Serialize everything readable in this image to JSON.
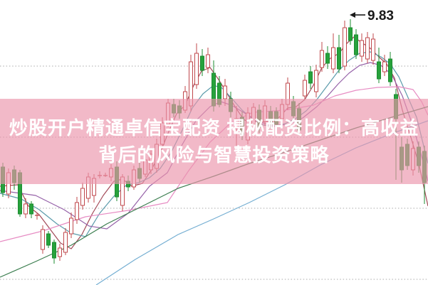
{
  "page": {
    "background": "#ffffff"
  },
  "overlay": {
    "band_color": "rgba(236,148,172,0.66)",
    "text_color": "#ffffff",
    "line1": "炒股开户精通卓信宝配资 揭秘配资比例：高收益",
    "line2": "背后的风险与智慧投资策略"
  },
  "chart_data": {
    "type": "candlestick",
    "title": "",
    "xlabel": "",
    "ylabel": "",
    "legend": "none",
    "grid": "dotted-horizontal",
    "colors": {
      "up_candle": "#c0484c",
      "down_candle_fill": "#27a23c",
      "down_candle_stroke": "#1d8c31",
      "gridline": "#a9a9a9",
      "annotation_text": "#1a1a1a"
    },
    "y_axis": {
      "gridline_prices": [
        9.5,
        9.0,
        8.5,
        8.0
      ],
      "labels_shown": false,
      "price_at_top_edge": 9.965,
      "price_at_bottom_edge": 7.96
    },
    "annotation": {
      "text": "9.83",
      "price": 9.83,
      "candle_index": 61
    },
    "candles": [
      [
        8.79,
        8.82,
        8.58,
        8.61
      ],
      [
        8.6,
        8.78,
        8.57,
        8.75
      ],
      [
        8.77,
        8.8,
        8.63,
        8.68
      ],
      [
        8.75,
        8.77,
        8.44,
        8.46
      ],
      [
        8.46,
        8.57,
        8.43,
        8.53
      ],
      [
        8.53,
        8.55,
        8.43,
        8.46
      ],
      [
        8.45,
        8.47,
        8.42,
        8.45
      ],
      [
        8.21,
        8.38,
        8.18,
        8.35
      ],
      [
        8.32,
        8.34,
        8.22,
        8.24
      ],
      [
        8.26,
        8.28,
        8.11,
        8.15
      ],
      [
        8.16,
        8.25,
        8.13,
        8.22
      ],
      [
        8.19,
        8.36,
        8.17,
        8.33
      ],
      [
        8.32,
        8.47,
        8.29,
        8.43
      ],
      [
        8.42,
        8.58,
        8.39,
        8.54
      ],
      [
        8.52,
        8.68,
        8.49,
        8.64
      ],
      [
        8.57,
        8.75,
        8.54,
        8.72
      ],
      [
        8.59,
        8.74,
        8.54,
        8.71
      ],
      [
        8.73,
        8.76,
        8.71,
        8.73
      ],
      [
        8.73,
        8.75,
        8.72,
        8.73
      ],
      [
        8.72,
        8.81,
        8.69,
        8.78
      ],
      [
        8.79,
        8.83,
        8.55,
        8.58
      ],
      [
        8.52,
        8.74,
        8.48,
        8.72
      ],
      [
        8.69,
        8.73,
        8.62,
        8.65
      ],
      [
        8.65,
        8.8,
        8.63,
        8.77
      ],
      [
        8.78,
        8.82,
        8.68,
        8.71
      ],
      [
        8.74,
        8.88,
        8.72,
        8.84
      ],
      [
        8.77,
        8.92,
        8.74,
        8.88
      ],
      [
        8.78,
        8.99,
        8.75,
        8.95
      ],
      [
        8.95,
        9.14,
        8.92,
        9.1
      ],
      [
        9.09,
        9.27,
        9.07,
        9.24
      ],
      [
        9.23,
        9.27,
        9.14,
        9.17
      ],
      [
        9.22,
        9.26,
        9.13,
        9.17
      ],
      [
        9.19,
        9.36,
        9.17,
        9.32
      ],
      [
        9.22,
        9.58,
        9.18,
        9.53
      ],
      [
        9.37,
        9.66,
        9.34,
        9.59
      ],
      [
        9.57,
        9.62,
        9.43,
        9.47
      ],
      [
        9.49,
        9.63,
        9.45,
        9.58
      ],
      [
        9.45,
        9.54,
        9.18,
        9.22
      ],
      [
        9.38,
        9.43,
        9.21,
        9.23
      ],
      [
        9.27,
        9.41,
        9.22,
        9.36
      ],
      [
        9.27,
        9.32,
        9.14,
        9.18
      ],
      [
        9.07,
        9.22,
        8.94,
        9.13
      ],
      [
        9.14,
        9.18,
        8.98,
        9.02
      ],
      [
        8.98,
        9.21,
        8.95,
        9.17
      ],
      [
        9.09,
        9.24,
        9.06,
        9.21
      ],
      [
        9.19,
        9.23,
        9.03,
        9.07
      ],
      [
        9.11,
        9.26,
        9.08,
        9.22
      ],
      [
        9.18,
        9.22,
        9.06,
        9.09
      ],
      [
        9.18,
        9.21,
        9.06,
        9.09
      ],
      [
        9.13,
        9.27,
        9.09,
        9.23
      ],
      [
        9.23,
        9.42,
        9.19,
        9.38
      ],
      [
        9.25,
        9.29,
        9.12,
        9.15
      ],
      [
        9.2,
        9.24,
        9.02,
        9.05
      ],
      [
        9.29,
        9.44,
        9.26,
        9.4
      ],
      [
        9.46,
        9.5,
        9.34,
        9.38
      ],
      [
        9.32,
        9.51,
        9.28,
        9.47
      ],
      [
        9.49,
        9.67,
        9.46,
        9.61
      ],
      [
        9.59,
        9.64,
        9.48,
        9.52
      ],
      [
        9.48,
        9.73,
        9.45,
        9.63
      ],
      [
        9.63,
        9.72,
        9.45,
        9.48
      ],
      [
        9.5,
        9.82,
        9.47,
        9.77
      ],
      [
        9.77,
        9.83,
        9.65,
        9.68
      ],
      [
        9.72,
        9.76,
        9.55,
        9.58
      ],
      [
        9.57,
        9.73,
        9.53,
        9.68
      ],
      [
        9.55,
        9.74,
        9.52,
        9.7
      ],
      [
        9.54,
        9.73,
        9.51,
        9.69
      ],
      [
        9.53,
        9.63,
        9.38,
        9.41
      ],
      [
        9.46,
        9.58,
        9.43,
        9.53
      ],
      [
        9.55,
        9.6,
        9.36,
        9.39
      ],
      [
        9.3,
        9.34,
        8.7,
        9.13
      ],
      [
        8.93,
        9.0,
        8.68,
        8.77
      ],
      [
        8.95,
        8.99,
        8.77,
        8.8
      ],
      [
        8.77,
        8.97,
        8.73,
        8.92
      ],
      [
        8.93,
        8.97,
        8.75,
        8.8
      ],
      [
        8.9,
        8.94,
        8.53,
        8.68
      ]
    ],
    "ma_lines": [
      {
        "name": "MA5",
        "color": "#a34a58",
        "points": [
          [
            0,
            8.655
          ],
          [
            25,
            8.665
          ],
          [
            40,
            8.515
          ],
          [
            55,
            8.455
          ],
          [
            70,
            8.355
          ],
          [
            85,
            8.255
          ],
          [
            100,
            8.215
          ],
          [
            115,
            8.315
          ],
          [
            130,
            8.465
          ],
          [
            145,
            8.59
          ],
          [
            160,
            8.69
          ],
          [
            172,
            8.705
          ],
          [
            185,
            8.655
          ],
          [
            200,
            8.675
          ],
          [
            212,
            8.765
          ],
          [
            225,
            8.89
          ],
          [
            237,
            9.04
          ],
          [
            248,
            9.165
          ],
          [
            260,
            9.225
          ],
          [
            272,
            9.365
          ],
          [
            283,
            9.465
          ],
          [
            295,
            9.49
          ],
          [
            307,
            9.405
          ],
          [
            318,
            9.315
          ],
          [
            330,
            9.215
          ],
          [
            342,
            9.125
          ],
          [
            355,
            9.09
          ],
          [
            367,
            9.105
          ],
          [
            380,
            9.115
          ],
          [
            392,
            9.14
          ],
          [
            404,
            9.205
          ],
          [
            416,
            9.215
          ],
          [
            428,
            9.265
          ],
          [
            440,
            9.365
          ],
          [
            452,
            9.49
          ],
          [
            464,
            9.555
          ],
          [
            476,
            9.59
          ],
          [
            488,
            9.665
          ],
          [
            497,
            9.705
          ],
          [
            508,
            9.665
          ],
          [
            520,
            9.625
          ],
          [
            532,
            9.565
          ],
          [
            543,
            9.515
          ],
          [
            554,
            9.415
          ],
          [
            565,
            9.19
          ],
          [
            576,
            9.015
          ],
          [
            588,
            8.815
          ],
          [
            601,
            8.515
          ]
        ]
      },
      {
        "name": "MA10",
        "color": "#5b9bab",
        "points": [
          [
            0,
            8.605
          ],
          [
            30,
            8.565
          ],
          [
            55,
            8.49
          ],
          [
            80,
            8.39
          ],
          [
            100,
            8.325
          ],
          [
            120,
            8.3
          ],
          [
            140,
            8.465
          ],
          [
            160,
            8.585
          ],
          [
            178,
            8.665
          ],
          [
            195,
            8.68
          ],
          [
            210,
            8.715
          ],
          [
            225,
            8.78
          ],
          [
            240,
            8.89
          ],
          [
            255,
            9.04
          ],
          [
            270,
            9.205
          ],
          [
            285,
            9.305
          ],
          [
            300,
            9.365
          ],
          [
            312,
            9.345
          ],
          [
            325,
            9.275
          ],
          [
            340,
            9.19
          ],
          [
            355,
            9.125
          ],
          [
            370,
            9.085
          ],
          [
            385,
            9.075
          ],
          [
            400,
            9.095
          ],
          [
            415,
            9.13
          ],
          [
            430,
            9.185
          ],
          [
            445,
            9.265
          ],
          [
            460,
            9.365
          ],
          [
            475,
            9.465
          ],
          [
            490,
            9.54
          ],
          [
            505,
            9.59
          ],
          [
            520,
            9.6
          ],
          [
            535,
            9.565
          ],
          [
            548,
            9.515
          ],
          [
            560,
            9.425
          ],
          [
            572,
            9.29
          ],
          [
            585,
            9.14
          ],
          [
            601,
            8.815
          ]
        ]
      },
      {
        "name": "MA20",
        "color": "#9662a8",
        "points": [
          [
            0,
            8.625
          ],
          [
            50,
            8.59
          ],
          [
            90,
            8.49
          ],
          [
            125,
            8.375
          ],
          [
            150,
            8.355
          ],
          [
            180,
            8.465
          ],
          [
            210,
            8.655
          ],
          [
            235,
            8.75
          ],
          [
            255,
            8.94
          ],
          [
            275,
            9.115
          ],
          [
            295,
            9.215
          ],
          [
            310,
            9.25
          ],
          [
            325,
            9.225
          ],
          [
            345,
            9.165
          ],
          [
            365,
            9.105
          ],
          [
            385,
            9.08
          ],
          [
            405,
            9.09
          ],
          [
            425,
            9.135
          ],
          [
            445,
            9.215
          ],
          [
            460,
            9.29
          ],
          [
            475,
            9.375
          ],
          [
            490,
            9.45
          ],
          [
            505,
            9.505
          ],
          [
            520,
            9.525
          ],
          [
            535,
            9.505
          ],
          [
            550,
            9.44
          ],
          [
            565,
            9.29
          ],
          [
            578,
            9.105
          ],
          [
            590,
            8.905
          ],
          [
            601,
            8.69
          ]
        ]
      },
      {
        "name": "MA30",
        "color": "#e78cc3",
        "points": [
          [
            0,
            8.265
          ],
          [
            60,
            8.34
          ],
          [
            120,
            8.44
          ],
          [
            180,
            8.485
          ],
          [
            235,
            8.54
          ],
          [
            265,
            8.765
          ],
          [
            295,
            8.965
          ],
          [
            325,
            9.105
          ],
          [
            355,
            9.175
          ],
          [
            400,
            9.19
          ],
          [
            440,
            9.225
          ],
          [
            470,
            9.29
          ],
          [
            500,
            9.33
          ],
          [
            530,
            9.35
          ],
          [
            560,
            9.355
          ],
          [
            580,
            9.335
          ],
          [
            592,
            9.25
          ],
          [
            601,
            9.155
          ]
        ]
      },
      {
        "name": "MA60",
        "color": "#3a7d4e",
        "points": [
          [
            0,
            8.015
          ],
          [
            50,
            8.125
          ],
          [
            100,
            8.24
          ],
          [
            150,
            8.39
          ],
          [
            200,
            8.515
          ],
          [
            250,
            8.64
          ],
          [
            300,
            8.725
          ],
          [
            350,
            8.815
          ],
          [
            400,
            8.895
          ],
          [
            450,
            8.98
          ],
          [
            500,
            9.065
          ],
          [
            550,
            9.14
          ],
          [
            601,
            9.215
          ]
        ]
      },
      {
        "name": "MA120",
        "color": "#74aed2",
        "points": [
          [
            135,
            7.96
          ],
          [
            190,
            8.14
          ],
          [
            250,
            8.315
          ],
          [
            300,
            8.425
          ],
          [
            350,
            8.54
          ],
          [
            400,
            8.665
          ],
          [
            450,
            8.805
          ],
          [
            500,
            8.925
          ],
          [
            550,
            9.025
          ],
          [
            601,
            9.115
          ]
        ]
      }
    ]
  }
}
